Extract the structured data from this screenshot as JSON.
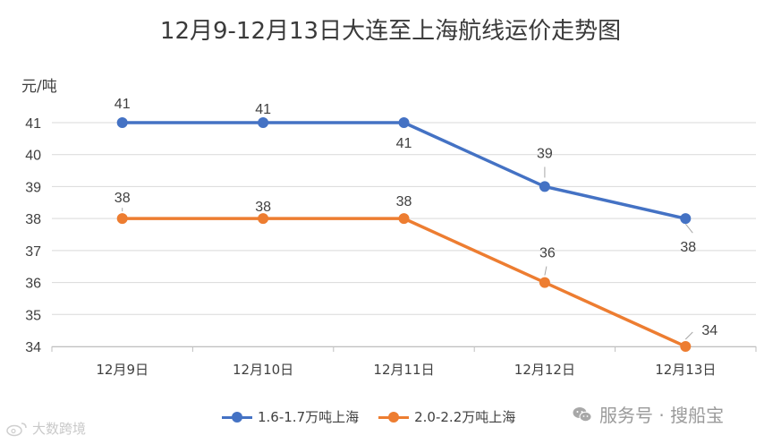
{
  "chart_data": {
    "type": "line",
    "title": "12月9-12月13日大连至上海航线运价走势图",
    "ylabel": "元/吨",
    "xlabel": "",
    "categories": [
      "12月9日",
      "12月10日",
      "12月11日",
      "12月12日",
      "12月13日"
    ],
    "ylim": [
      34,
      41
    ],
    "yticks": [
      34,
      35,
      36,
      37,
      38,
      39,
      40,
      41
    ],
    "grid": true,
    "legend_position": "bottom",
    "series": [
      {
        "name": "1.6-1.7万吨上海",
        "values": [
          41,
          41,
          41,
          39,
          38
        ],
        "color": "#4472c4"
      },
      {
        "name": "2.0-2.2万吨上海",
        "values": [
          38,
          38,
          38,
          36,
          34
        ],
        "color": "#ed7d31"
      }
    ]
  },
  "watermarks": {
    "right": "服务号 · 搜船宝",
    "right_icon": "wechat-icon",
    "left": "大数跨境",
    "left_icon": "weibo-icon"
  }
}
